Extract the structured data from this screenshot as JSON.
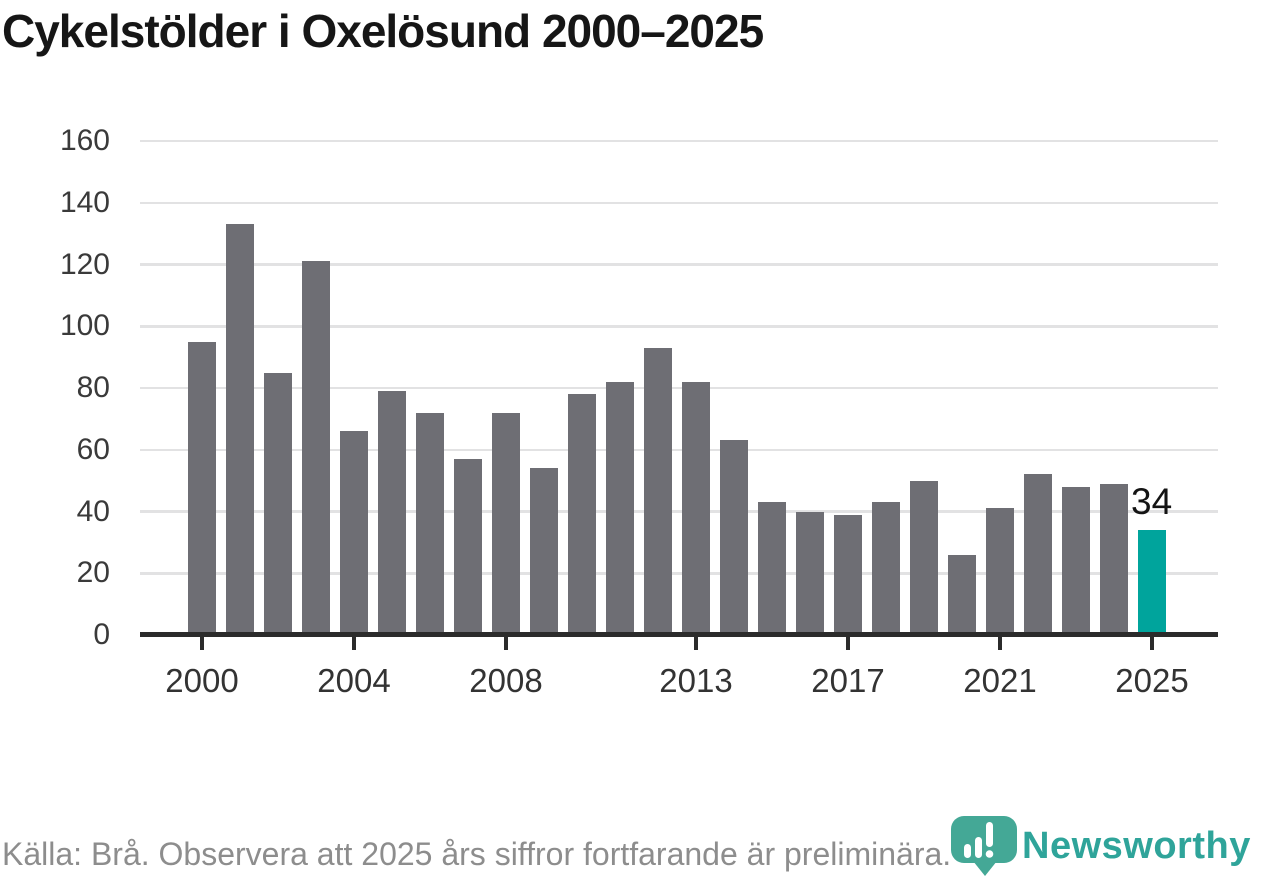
{
  "title": "Cykelstölder i Oxelösund 2000–2025",
  "chart_data": {
    "type": "bar",
    "title": "Cykelstölder i Oxelösund 2000–2025",
    "xlabel": "",
    "ylabel": "",
    "categories": [
      "2000",
      "2001",
      "2002",
      "2003",
      "2004",
      "2005",
      "2006",
      "2007",
      "2008",
      "2009",
      "2010",
      "2011",
      "2012",
      "2013",
      "2014",
      "2015",
      "2016",
      "2017",
      "2018",
      "2019",
      "2020",
      "2021",
      "2022",
      "2023",
      "2024",
      "2025"
    ],
    "values": [
      95,
      133,
      85,
      121,
      66,
      79,
      72,
      57,
      72,
      54,
      78,
      82,
      93,
      82,
      63,
      43,
      40,
      39,
      43,
      50,
      26,
      41,
      52,
      48,
      49,
      34
    ],
    "highlight_index": 25,
    "highlight_value_label": "34",
    "x_tick_labels": [
      "2000",
      "2004",
      "2008",
      "2013",
      "2017",
      "2021",
      "2025"
    ],
    "y_ticks": [
      0,
      20,
      40,
      60,
      80,
      100,
      120,
      140,
      160
    ],
    "ylim": [
      0,
      160
    ],
    "grid": true,
    "legend_position": "none",
    "bar_color": "#6e6e74",
    "highlight_color": "#00a49c"
  },
  "footer": {
    "source_text": "Källa: Brå. Observera att 2025 års siffror fortfarande är preliminära."
  },
  "branding": {
    "logo_text": "Newsworthy",
    "logo_text_color": "#2fa49a",
    "logo_icon_color": "#44a896"
  }
}
